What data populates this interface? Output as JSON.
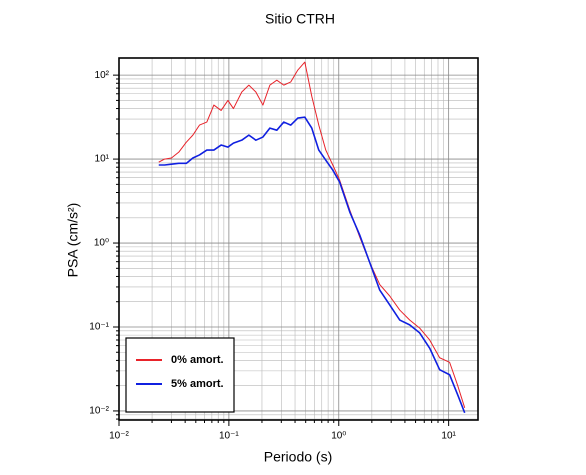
{
  "chart_data": {
    "type": "line",
    "title": "Sitio CTRH",
    "xlabel": "Periodo (s)",
    "ylabel": "PSA (cm/s²)",
    "xscale": "log",
    "yscale": "log",
    "grid": true,
    "minor_grid": true,
    "legend": "lower left",
    "xlim": [
      0.01,
      18.5
    ],
    "ylim": [
      0.0078,
      160
    ],
    "xticks": [
      {
        "value": 0.01,
        "label": "10⁻²"
      },
      {
        "value": 0.1,
        "label": "10⁻¹"
      },
      {
        "value": 1,
        "label": "10⁰"
      },
      {
        "value": 10,
        "label": "10¹"
      }
    ],
    "yticks": [
      {
        "value": 0.01,
        "label": "10⁻²"
      },
      {
        "value": 0.1,
        "label": "10⁻¹"
      },
      {
        "value": 1,
        "label": "10⁰"
      },
      {
        "value": 10,
        "label": "10¹"
      },
      {
        "value": 100,
        "label": "10²"
      }
    ],
    "x": [
      0.023,
      0.026,
      0.03,
      0.035,
      0.041,
      0.047,
      0.054,
      0.063,
      0.073,
      0.085,
      0.098,
      0.11,
      0.131,
      0.152,
      0.176,
      0.204,
      0.236,
      0.273,
      0.316,
      0.366,
      0.424,
      0.491,
      0.568,
      0.658,
      0.762,
      0.882,
      1.02,
      1.26,
      1.55,
      1.91,
      2.36,
      2.91,
      3.59,
      4.42,
      5.45,
      6.72,
      8.28,
      10.2,
      12.1,
      14.0
    ],
    "series": [
      {
        "name": "0% amort.",
        "color": "#e8232a",
        "width": 1,
        "values": [
          9.2,
          10,
          10.3,
          12.1,
          15.9,
          19.3,
          25.4,
          27.6,
          44,
          38,
          50,
          40,
          63,
          76,
          63,
          44,
          76,
          87,
          76,
          83,
          115,
          143,
          56,
          25.4,
          12.8,
          8.5,
          5.6,
          2.47,
          1.18,
          0.59,
          0.32,
          0.234,
          0.159,
          0.121,
          0.097,
          0.07,
          0.043,
          0.038,
          0.02,
          0.0109
        ]
      },
      {
        "name": "5% amort.",
        "color": "#1020e0",
        "width": 1.6,
        "values": [
          8.5,
          8.5,
          8.7,
          8.9,
          8.9,
          10.3,
          11.2,
          12.8,
          12.8,
          14.7,
          13.9,
          15.5,
          16.8,
          19.3,
          16.8,
          18.3,
          23.4,
          22.1,
          27.6,
          25.4,
          30.8,
          31.6,
          23.4,
          12.8,
          9.7,
          7.4,
          5.3,
          2.34,
          1.25,
          0.59,
          0.275,
          0.183,
          0.121,
          0.106,
          0.085,
          0.056,
          0.031,
          0.027,
          0.0155,
          0.0095
        ]
      }
    ]
  }
}
